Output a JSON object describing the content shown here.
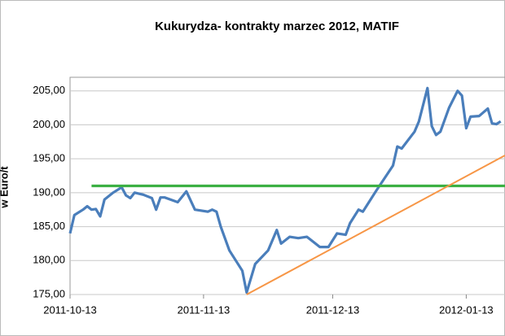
{
  "chart_data": {
    "type": "line",
    "title": "Kukurydza- kontrakty marzec 2012, MATIF",
    "y_label": "w Euro/t",
    "xlim": [
      "2011-10-13",
      "2012-01-22"
    ],
    "xticks": [
      "2011-10-13",
      "2011-11-13",
      "2011-12-13",
      "2012-01-13"
    ],
    "ylim": [
      175,
      207
    ],
    "yticks": [
      {
        "value": 175,
        "label": "175,00"
      },
      {
        "value": 180,
        "label": "180,00"
      },
      {
        "value": 185,
        "label": "185,00"
      },
      {
        "value": 190,
        "label": "190,00"
      },
      {
        "value": 195,
        "label": "195,00"
      },
      {
        "value": 200,
        "label": "200,00"
      },
      {
        "value": 205,
        "label": "205,00"
      }
    ],
    "grid": true,
    "series": [
      {
        "color": "#4a7ebb",
        "x": [
          "2011-10-13",
          "2011-10-14",
          "2011-10-16",
          "2011-10-17",
          "2011-10-18",
          "2011-10-19",
          "2011-10-20",
          "2011-10-21",
          "2011-10-23",
          "2011-10-25",
          "2011-10-26",
          "2011-10-27",
          "2011-10-28",
          "2011-10-30",
          "2011-11-01",
          "2011-11-02",
          "2011-11-03",
          "2011-11-04",
          "2011-11-07",
          "2011-11-09",
          "2011-11-11",
          "2011-11-14",
          "2011-11-15",
          "2011-11-16",
          "2011-11-17",
          "2011-11-19",
          "2011-11-22",
          "2011-11-23",
          "2011-11-25",
          "2011-11-28",
          "2011-11-30",
          "2011-12-01",
          "2011-12-03",
          "2011-12-05",
          "2011-12-07",
          "2011-12-08",
          "2011-12-10",
          "2011-12-12",
          "2011-12-14",
          "2011-12-16",
          "2011-12-17",
          "2011-12-19",
          "2011-12-20",
          "2011-12-23",
          "2011-12-27",
          "2011-12-28",
          "2011-12-29",
          "2012-01-01",
          "2012-01-02",
          "2012-01-04",
          "2012-01-05",
          "2012-01-06",
          "2012-01-07",
          "2012-01-09",
          "2012-01-11",
          "2012-01-12",
          "2012-01-13",
          "2012-01-14",
          "2012-01-16",
          "2012-01-18",
          "2012-01-19",
          "2012-01-20",
          "2012-01-21"
        ],
        "values": [
          184,
          186.7,
          187.5,
          188,
          187.5,
          187.6,
          186.5,
          189,
          190,
          190.8,
          189.6,
          189.2,
          190,
          189.7,
          189.2,
          187.5,
          189.3,
          189.3,
          188.6,
          190.2,
          187.5,
          187.2,
          187.5,
          187.2,
          185,
          181.5,
          178.5,
          175.3,
          179.5,
          181.5,
          184.5,
          182.5,
          183.5,
          183.3,
          183.5,
          183,
          182,
          182,
          184,
          183.8,
          185.5,
          187.5,
          187.2,
          190.2,
          194,
          196.8,
          196.5,
          199,
          200.5,
          205.4,
          199.8,
          198.5,
          199,
          202.5,
          205,
          204.3,
          199.5,
          201.2,
          201.3,
          202.4,
          200.2,
          200.1,
          200.5
        ]
      },
      {
        "color": "#3cb043",
        "x": [
          "2011-10-18",
          "2012-01-22"
        ],
        "values": [
          191,
          191
        ]
      },
      {
        "color": "#f79646",
        "x": [
          "2011-11-23",
          "2012-01-22"
        ],
        "values": [
          175,
          195.5
        ]
      }
    ]
  }
}
